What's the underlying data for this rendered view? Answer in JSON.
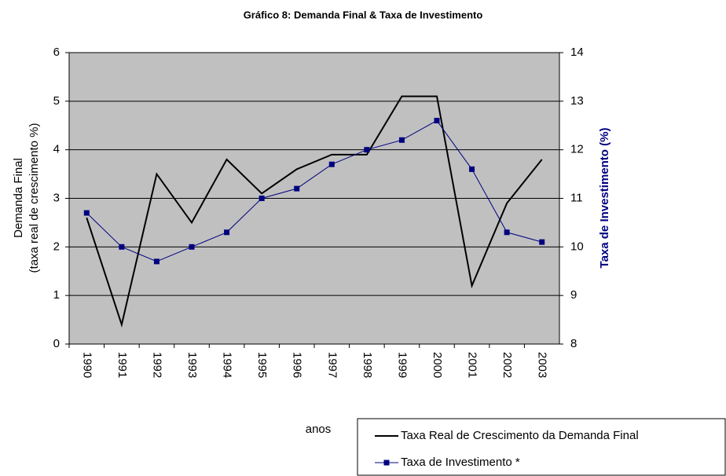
{
  "chart_data": {
    "type": "line",
    "title": "Gráfico 8: Demanda Final & Taxa de Investimento",
    "xlabel": "anos",
    "ylabel": [
      "Demanda Final",
      "(taxa real de crescimento %)"
    ],
    "y2label": "Taxa de Investimento (%)",
    "categories": [
      "1990",
      "1991",
      "1992",
      "1993",
      "1994",
      "1995",
      "1996",
      "1997",
      "1998",
      "1999",
      "2000",
      "2001",
      "2002",
      "2003"
    ],
    "series": [
      {
        "name": "Taxa Real de Crescimento da Demanda Final",
        "color": "#000000",
        "marker": false,
        "values": [
          2.6,
          0.4,
          3.5,
          2.5,
          3.8,
          3.1,
          3.6,
          3.9,
          3.9,
          5.1,
          5.1,
          1.2,
          2.9,
          3.8
        ]
      },
      {
        "name": "Taxa de Investimento *",
        "color": "#000080",
        "marker": true,
        "axis": "y2",
        "values": [
          10.7,
          10.0,
          9.7,
          10.0,
          10.3,
          11.0,
          11.2,
          11.7,
          12.0,
          12.2,
          12.6,
          11.6,
          10.3,
          10.1
        ]
      }
    ],
    "ylim": [
      0,
      6
    ],
    "yticks": [
      0,
      1,
      2,
      3,
      4,
      5,
      6
    ],
    "y2lim": [
      8,
      14
    ],
    "y2ticks": [
      8,
      9,
      10,
      11,
      12,
      13,
      14
    ],
    "grid": true,
    "plot_background": "#c0c0c0",
    "legend": "lower right"
  }
}
